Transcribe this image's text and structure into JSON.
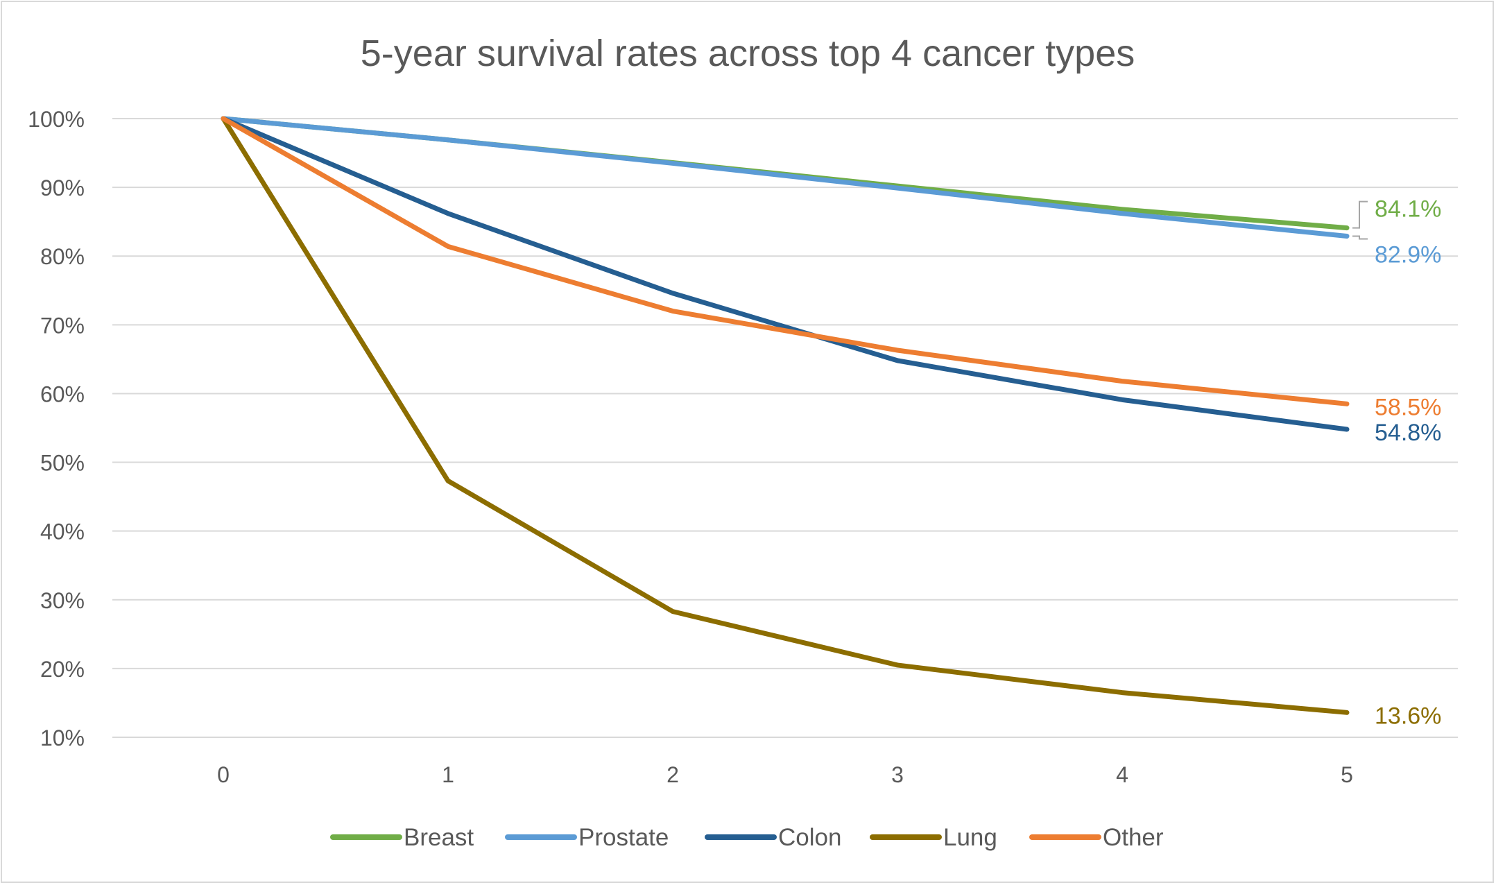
{
  "chart_data": {
    "type": "line",
    "title": "5-year survival rates across top 4 cancer types",
    "xlabel": "",
    "ylabel": "",
    "x": [
      0,
      1,
      2,
      3,
      4,
      5
    ],
    "x_tick_labels": [
      "0",
      "1",
      "2",
      "3",
      "4",
      "5"
    ],
    "ylim": [
      10,
      100
    ],
    "y_ticks": [
      10,
      20,
      30,
      40,
      50,
      60,
      70,
      80,
      90,
      100
    ],
    "y_tick_labels": [
      "10%",
      "20%",
      "30%",
      "40%",
      "50%",
      "60%",
      "70%",
      "80%",
      "90%",
      "100%"
    ],
    "grid": true,
    "legend_position": "bottom",
    "series": [
      {
        "name": "Breast",
        "color": "#70ad47",
        "values": [
          100,
          96.9,
          93.6,
          90.2,
          86.8,
          84.1
        ],
        "end_label": "84.1%"
      },
      {
        "name": "Prostate",
        "color": "#5b9bd5",
        "values": [
          100,
          96.9,
          93.5,
          89.9,
          86.2,
          82.9
        ],
        "end_label": "82.9%"
      },
      {
        "name": "Colon",
        "color": "#255e91",
        "values": [
          100,
          86.2,
          74.6,
          64.8,
          59.1,
          54.8
        ],
        "end_label": "54.8%"
      },
      {
        "name": "Lung",
        "color": "#8c6d00",
        "values": [
          100,
          47.3,
          28.3,
          20.5,
          16.5,
          13.6
        ],
        "end_label": "13.6%"
      },
      {
        "name": "Other",
        "color": "#ed7d31",
        "values": [
          100,
          81.4,
          72.0,
          66.3,
          61.8,
          58.5
        ],
        "end_label": "58.5%"
      }
    ]
  }
}
